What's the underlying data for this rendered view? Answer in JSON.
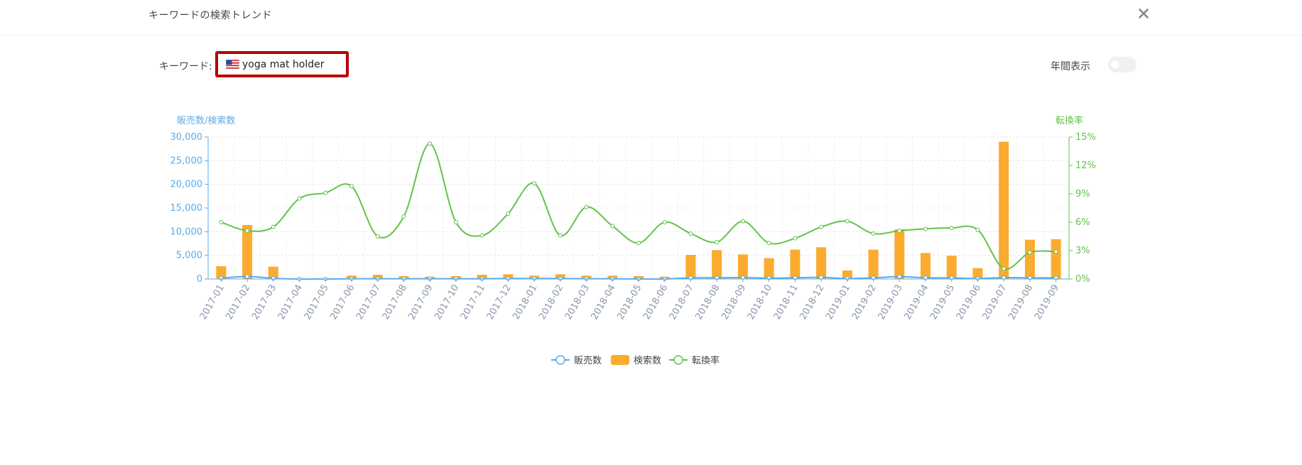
{
  "header": {
    "title": "キーワードの検索トレンド",
    "close_icon": "close-icon"
  },
  "filter": {
    "keyword_label": "キーワード:",
    "keyword_value": "yoga mat holder",
    "flag_icon": "us-flag-icon",
    "annual_label": "年間表示",
    "annual_toggle_on": false
  },
  "chart_data": {
    "type": "bar",
    "categories": [
      "2017-01",
      "2017-02",
      "2017-03",
      "2017-04",
      "2017-05",
      "2017-06",
      "2017-07",
      "2017-08",
      "2017-09",
      "2017-10",
      "2017-11",
      "2017-12",
      "2018-01",
      "2018-02",
      "2018-03",
      "2018-04",
      "2018-05",
      "2018-06",
      "2018-07",
      "2018-08",
      "2018-09",
      "2018-10",
      "2018-11",
      "2018-12",
      "2019-01",
      "2019-02",
      "2019-03",
      "2019-04",
      "2019-05",
      "2019-06",
      "2019-07",
      "2019-08",
      "2019-09"
    ],
    "left_axis_title": "販売数/検索数",
    "right_axis_title": "転換率",
    "left_ylim": [
      0,
      30000
    ],
    "right_ylim": [
      0,
      15
    ],
    "left_ticks": [
      "0",
      "5,000",
      "10,000",
      "15,000",
      "20,000",
      "25,000",
      "30,000"
    ],
    "right_ticks": [
      "0%",
      "3%",
      "6%",
      "9%",
      "12%",
      "15%"
    ],
    "grid": true,
    "legend_position": "bottom-center",
    "series": [
      {
        "name": "販売数",
        "type": "line",
        "axis": "left",
        "color": "#5aabe8",
        "values": [
          150,
          550,
          150,
          0,
          0,
          50,
          50,
          50,
          50,
          50,
          50,
          100,
          100,
          100,
          50,
          50,
          0,
          0,
          250,
          250,
          300,
          200,
          250,
          350,
          100,
          250,
          500,
          250,
          250,
          100,
          300,
          250,
          250
        ]
      },
      {
        "name": "検索数",
        "type": "bar",
        "axis": "left",
        "color": "#fbab2e",
        "values": [
          2700,
          11400,
          2600,
          0,
          0,
          700,
          900,
          600,
          500,
          600,
          900,
          1000,
          700,
          1000,
          700,
          700,
          600,
          500,
          5100,
          6100,
          5200,
          4400,
          6200,
          6700,
          1800,
          6200,
          10500,
          5500,
          4900,
          2300,
          29000,
          8300,
          8400
        ]
      },
      {
        "name": "転換率",
        "type": "line",
        "axis": "right",
        "color": "#62c34a",
        "values": [
          6.0,
          5.1,
          5.5,
          8.5,
          9.1,
          9.8,
          4.5,
          6.6,
          14.3,
          6.0,
          4.6,
          6.9,
          10.1,
          4.6,
          7.6,
          5.6,
          3.8,
          6.0,
          4.8,
          3.9,
          6.1,
          3.8,
          4.3,
          5.5,
          6.1,
          4.8,
          5.1,
          5.3,
          5.4,
          5.2,
          1.1,
          2.8,
          2.9
        ]
      }
    ]
  }
}
